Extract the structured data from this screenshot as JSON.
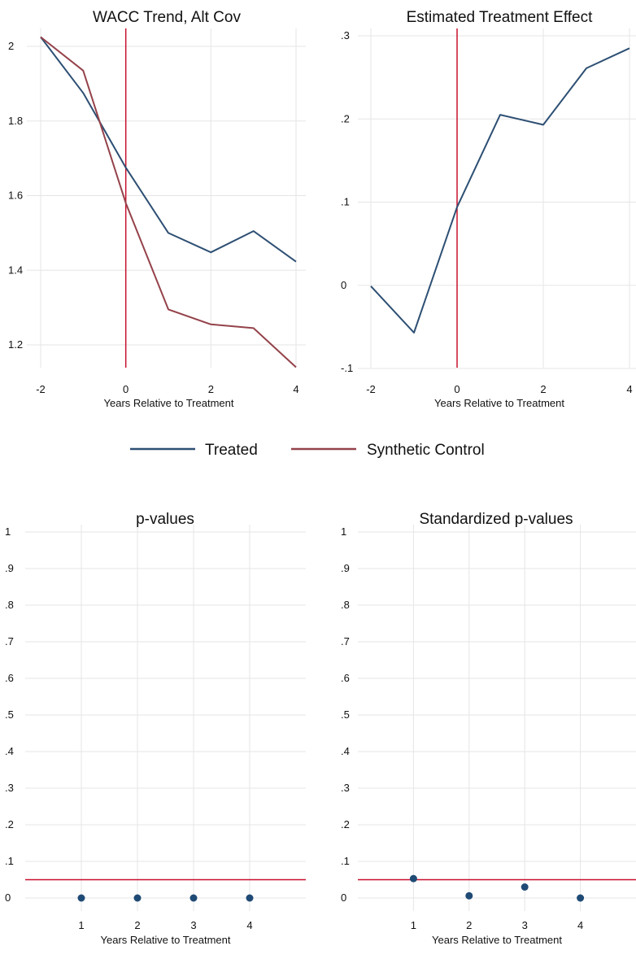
{
  "legend": {
    "items": [
      {
        "label": "Treated",
        "color": "#2d4f73"
      },
      {
        "label": "Synthetic Control",
        "color": "#94424a"
      }
    ]
  },
  "chart_data": [
    {
      "type": "line",
      "title": "WACC Trend, Alt Cov",
      "xlabel": "Years Relative to Treatment",
      "ylabel": "",
      "xlim": [
        -2,
        4
      ],
      "ylim": [
        1.14,
        2.04
      ],
      "xticks": [
        -2,
        0,
        2,
        4
      ],
      "xtick_labels": [
        "-2",
        "0",
        "2",
        "4"
      ],
      "yticks": [
        1.2,
        1.4,
        1.6,
        1.8,
        2.0
      ],
      "ytick_labels": [
        "1.2",
        "1.4",
        "1.6",
        "1.8",
        "2"
      ],
      "grid": true,
      "vline": {
        "x": 0,
        "color": "#c8102e"
      },
      "x": [
        -2,
        -1,
        0,
        1,
        2,
        3,
        4
      ],
      "series": [
        {
          "name": "Treated",
          "color": "#2d4f73",
          "values": [
            2.025,
            1.875,
            1.675,
            1.5,
            1.448,
            1.505,
            1.423
          ]
        },
        {
          "name": "Synthetic Control",
          "color": "#94424a",
          "values": [
            2.025,
            1.935,
            1.58,
            1.295,
            1.255,
            1.245,
            1.14
          ]
        }
      ]
    },
    {
      "type": "line",
      "title": "Estimated Treatment Effect",
      "xlabel": "Years Relative to Treatment",
      "ylabel": "",
      "xlim": [
        -2,
        4
      ],
      "ylim": [
        -0.1,
        0.3
      ],
      "xticks": [
        -2,
        0,
        2,
        4
      ],
      "xtick_labels": [
        "-2",
        "0",
        "2",
        "4"
      ],
      "yticks": [
        -0.1,
        0,
        0.1,
        0.2,
        0.3
      ],
      "ytick_labels": [
        "-.1",
        "0",
        ".1",
        ".2",
        ".3"
      ],
      "grid": true,
      "vline": {
        "x": 0,
        "color": "#c8102e"
      },
      "x": [
        -2,
        -1,
        0,
        1,
        2,
        3,
        4
      ],
      "series": [
        {
          "color": "#2d4f73",
          "values": [
            -0.001,
            -0.057,
            0.094,
            0.205,
            0.193,
            0.261,
            0.285
          ]
        }
      ]
    },
    {
      "type": "scatter",
      "title": "p-values",
      "xlabel": "Years Relative to Treatment",
      "ylabel": "",
      "xlim": [
        0,
        5
      ],
      "ylim": [
        0,
        1
      ],
      "xticks": [
        1,
        2,
        3,
        4
      ],
      "xtick_labels": [
        "1",
        "2",
        "3",
        "4"
      ],
      "yticks": [
        0,
        0.1,
        0.2,
        0.3,
        0.4,
        0.5,
        0.6,
        0.7,
        0.8,
        0.9,
        1
      ],
      "ytick_labels": [
        "0",
        ".1",
        ".2",
        ".3",
        ".4",
        ".5",
        ".6",
        ".7",
        ".8",
        ".9",
        "1"
      ],
      "grid": true,
      "hline": {
        "y": 0.05,
        "color": "#c8102e"
      },
      "x": [
        1,
        2,
        3,
        4
      ],
      "series": [
        {
          "color": "#1f4a75",
          "values": [
            0,
            0,
            0,
            0
          ]
        }
      ]
    },
    {
      "type": "scatter",
      "title": "Standardized p-values",
      "xlabel": "Years Relative to Treatment",
      "ylabel": "",
      "xlim": [
        0,
        5
      ],
      "ylim": [
        0,
        1
      ],
      "xticks": [
        1,
        2,
        3,
        4
      ],
      "xtick_labels": [
        "1",
        "2",
        "3",
        "4"
      ],
      "yticks": [
        0,
        0.1,
        0.2,
        0.3,
        0.4,
        0.5,
        0.6,
        0.7,
        0.8,
        0.9,
        1
      ],
      "ytick_labels": [
        "0",
        ".1",
        ".2",
        ".3",
        ".4",
        ".5",
        ".6",
        ".7",
        ".8",
        ".9",
        "1"
      ],
      "grid": true,
      "hline": {
        "y": 0.05,
        "color": "#c8102e"
      },
      "x": [
        1,
        2,
        3,
        4
      ],
      "series": [
        {
          "color": "#1f4a75",
          "values": [
            0.053,
            0.006,
            0.03,
            0
          ]
        }
      ]
    }
  ]
}
